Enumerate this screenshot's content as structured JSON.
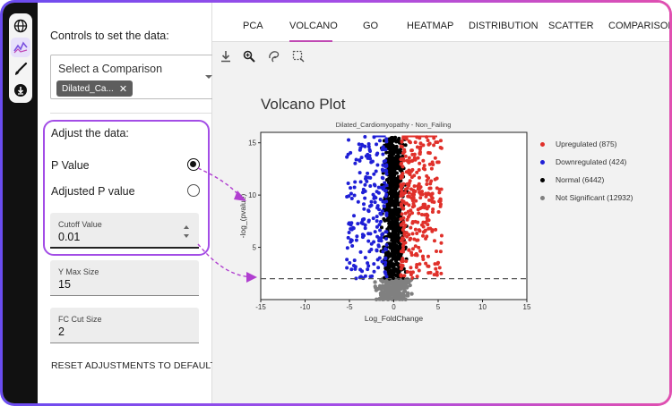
{
  "sidebar_rail": {
    "buttons": [
      {
        "icon": "globe-icon"
      },
      {
        "icon": "sparkline-icon",
        "active": true
      },
      {
        "icon": "brush-icon"
      },
      {
        "icon": "download-icon"
      }
    ]
  },
  "controls": {
    "title": "Controls to set the data:",
    "comparison_label": "Select a Comparison",
    "comparison_chip": "Dilated_Ca...",
    "adjust_title": "Adjust the data:",
    "radio_pvalue": "P Value",
    "radio_adj_pvalue": "Adjusted P value",
    "cutoff_label": "Cutoff Value",
    "cutoff_value": "0.01",
    "ymax_label": "Y Max Size",
    "ymax_value": "15",
    "fc_label": "FC Cut Size",
    "fc_value": "2",
    "reset_label": "RESET ADJUSTMENTS TO DEFAULT"
  },
  "tabs": [
    "PCA",
    "VOLCANO",
    "GO",
    "HEATMAP",
    "DISTRIBUTION",
    "SCATTER",
    "COMPARISON"
  ],
  "active_tab": "VOLCANO",
  "toolbar": [
    "download-icon",
    "zoom-icon",
    "lasso-icon",
    "box-select-icon"
  ],
  "colors": {
    "accent": "#a34de6",
    "tab_underline": "#c048b3",
    "up": "#e0302a",
    "down": "#1f1fd6",
    "normal": "#000000",
    "ns": "#808080"
  },
  "chart_data": {
    "type": "scatter",
    "title": "Volcano Plot",
    "subtitle": "Dilated_Cardiomyopathy - Non_Failing",
    "xlabel": "Log_FoldChange",
    "ylabel": "-log_(pvalue)",
    "xlim": [
      -15,
      15
    ],
    "ylim": [
      0,
      16
    ],
    "xticks": [
      "-15",
      "-10",
      "-5",
      "0",
      "5",
      "10",
      "15"
    ],
    "yticks": [
      "5",
      "10",
      "15"
    ],
    "threshold_y": 2,
    "grid": false,
    "legend_position": "right",
    "series": [
      {
        "name": "Upregulated (875)",
        "count": 875,
        "x_range": [
          0.8,
          5.4
        ],
        "y_range": [
          2,
          15.6
        ]
      },
      {
        "name": "Downregulated (424)",
        "count": 424,
        "x_range": [
          -5.3,
          -0.8
        ],
        "y_range": [
          2,
          15.6
        ]
      },
      {
        "name": "Normal (6442)",
        "count": 6442,
        "x_range": [
          -1.2,
          1.2
        ],
        "y_range": [
          2,
          15.6
        ]
      },
      {
        "name": "Not Significant (12932)",
        "count": 12932,
        "x_range": [
          -1.5,
          1.5
        ],
        "y_range": [
          0,
          2
        ]
      }
    ]
  }
}
